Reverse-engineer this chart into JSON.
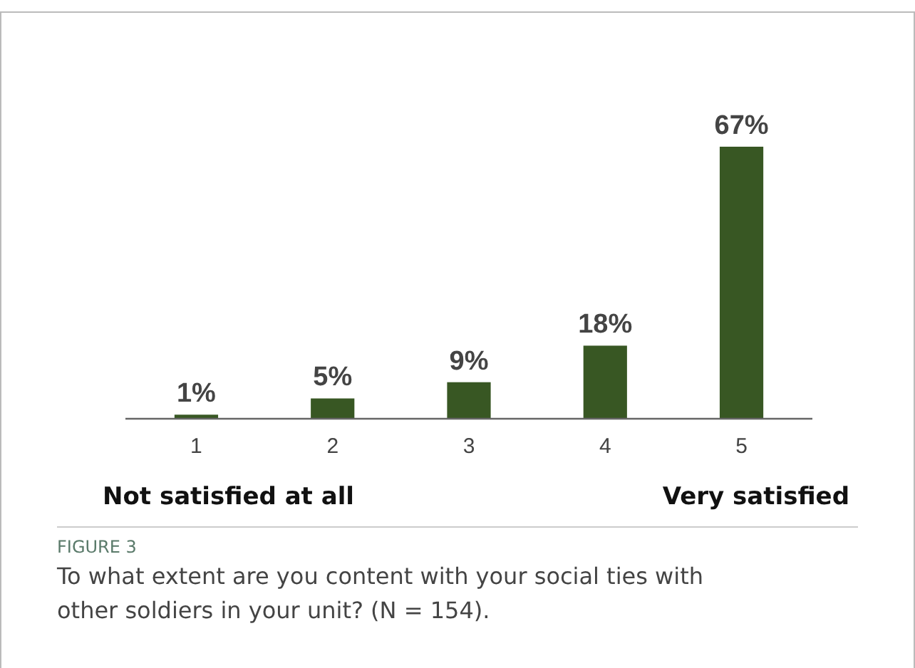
{
  "chart_data": {
    "type": "bar",
    "categories": [
      "1",
      "2",
      "3",
      "4",
      "5"
    ],
    "values": [
      1,
      5,
      9,
      18,
      67
    ],
    "value_labels": [
      "1%",
      "5%",
      "9%",
      "18%",
      "67%"
    ],
    "color": "#385723",
    "annotations": [
      "Not satisfied at all",
      "Very satisfied",
      "FIGURE 3",
      "To what extent are you content with your social ties with other soldiers in your unit? (N = 154)."
    ]
  }
}
